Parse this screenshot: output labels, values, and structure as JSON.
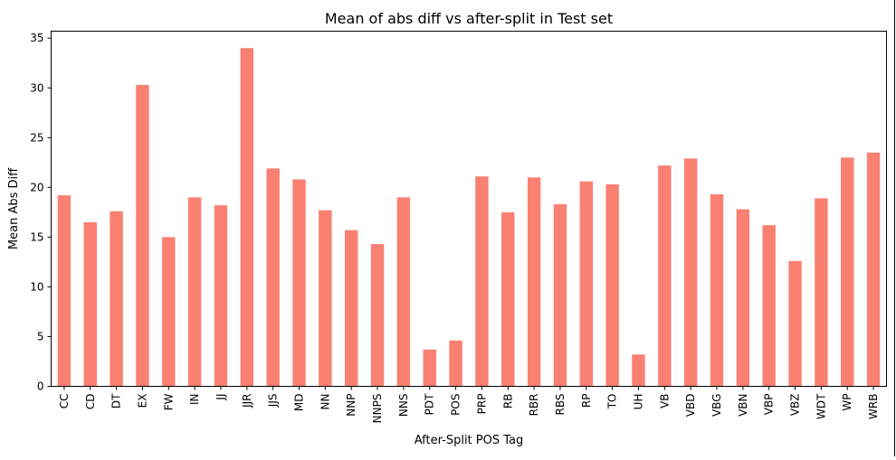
{
  "chart_data": {
    "type": "bar",
    "title": "Mean of abs diff vs after-split in Test set",
    "xlabel": "After-Split POS Tag",
    "ylabel": "Mean Abs Diff",
    "ylim": [
      0,
      35.7
    ],
    "yticks": [
      0,
      5,
      10,
      15,
      20,
      25,
      30,
      35
    ],
    "grid": false,
    "bar_color": "#fa8072",
    "categories": [
      "CC",
      "CD",
      "DT",
      "EX",
      "FW",
      "IN",
      "JJ",
      "JJR",
      "JJS",
      "MD",
      "NN",
      "NNP",
      "NNPS",
      "NNS",
      "PDT",
      "POS",
      "PRP",
      "RB",
      "RBR",
      "RBS",
      "RP",
      "TO",
      "UH",
      "VB",
      "VBD",
      "VBG",
      "VBN",
      "VBP",
      "VBZ",
      "WDT",
      "WP",
      "WRB"
    ],
    "values": [
      19.2,
      16.5,
      17.6,
      30.3,
      15.0,
      19.0,
      18.2,
      34.0,
      21.9,
      20.8,
      17.7,
      15.7,
      14.3,
      19.0,
      3.7,
      4.6,
      21.1,
      17.5,
      21.0,
      18.3,
      20.6,
      20.3,
      3.2,
      22.2,
      22.9,
      19.3,
      17.8,
      16.2,
      12.6,
      18.9,
      23.0,
      23.5
    ]
  }
}
